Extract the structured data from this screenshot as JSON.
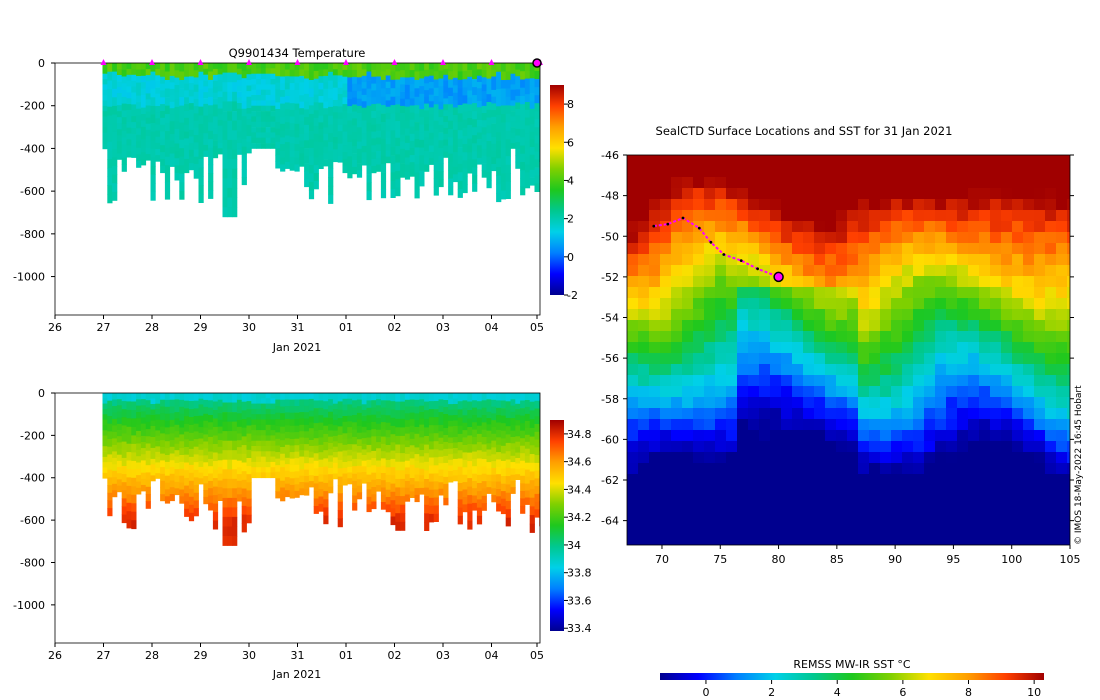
{
  "chart_data": [
    {
      "id": "temperature-section",
      "type": "heatmap",
      "title": "Q9901434  Temperature",
      "x_tick_labels": [
        "26",
        "27",
        "28",
        "29",
        "30",
        "31",
        "01",
        "02",
        "03",
        "04",
        "05"
      ],
      "xlabel": "Jan 2021",
      "y_ticks": [
        0,
        -200,
        -400,
        -600,
        -800,
        -1000
      ],
      "ylim": [
        -1180,
        0
      ],
      "profile_markers_day_offset": [
        1,
        2,
        3,
        4,
        5,
        6,
        7,
        8,
        9,
        10
      ],
      "highlight_profile_day_offset": 10.0,
      "colorbar_ticks": [
        8,
        6,
        4,
        2,
        0,
        -2
      ],
      "colorbar_range": [
        -2,
        9
      ]
    },
    {
      "id": "salinity-section",
      "type": "heatmap",
      "title": "",
      "x_tick_labels": [
        "26",
        "27",
        "28",
        "29",
        "30",
        "31",
        "01",
        "02",
        "03",
        "04",
        "05"
      ],
      "xlabel": "Jan 2021",
      "y_ticks": [
        0,
        -200,
        -400,
        -600,
        -800,
        -1000
      ],
      "ylim": [
        -1180,
        0
      ],
      "colorbar_ticks": [
        34.8,
        34.6,
        34.4,
        34.2,
        34,
        33.8,
        33.6,
        33.4
      ],
      "colorbar_range": [
        33.38,
        34.9
      ]
    },
    {
      "id": "sst-map",
      "type": "heatmap",
      "title": "SealCTD Surface Locations and SST for 31 Jan 2021",
      "lon_ticks": [
        70,
        75,
        80,
        85,
        90,
        95,
        100,
        105
      ],
      "lat_ticks": [
        -46,
        -48,
        -50,
        -52,
        -54,
        -56,
        -58,
        -60,
        -62,
        -64
      ],
      "lon_range": [
        67,
        105
      ],
      "lat_range": [
        -65.2,
        -46
      ],
      "track": [
        [
          69.3,
          -49.5
        ],
        [
          70.5,
          -49.4
        ],
        [
          71.8,
          -49.1
        ],
        [
          73.2,
          -49.6
        ],
        [
          74.2,
          -50.3
        ],
        [
          75.3,
          -50.9
        ],
        [
          76.8,
          -51.2
        ],
        [
          78.2,
          -51.6
        ],
        [
          80.0,
          -52.0
        ]
      ],
      "last_position": [
        80.0,
        -52.0
      ],
      "colorbar_label": "REMSS MW-IR SST °C",
      "colorbar_ticks": [
        0,
        2,
        4,
        6,
        8,
        10
      ],
      "colorbar_range": [
        -1.4,
        10.3
      ]
    }
  ],
  "credit": "© IMOS 18-May-2022 16:45 Hobart",
  "colors": {
    "colormap": [
      "#00008f",
      "#0000ff",
      "#007fff",
      "#00d0e8",
      "#00c890",
      "#1ec81e",
      "#7fd000",
      "#ffe000",
      "#ff9f00",
      "#ff4000",
      "#a00000"
    ],
    "marker": "#ff00ff",
    "track": "#ff00ff",
    "background": "#ffffff"
  }
}
